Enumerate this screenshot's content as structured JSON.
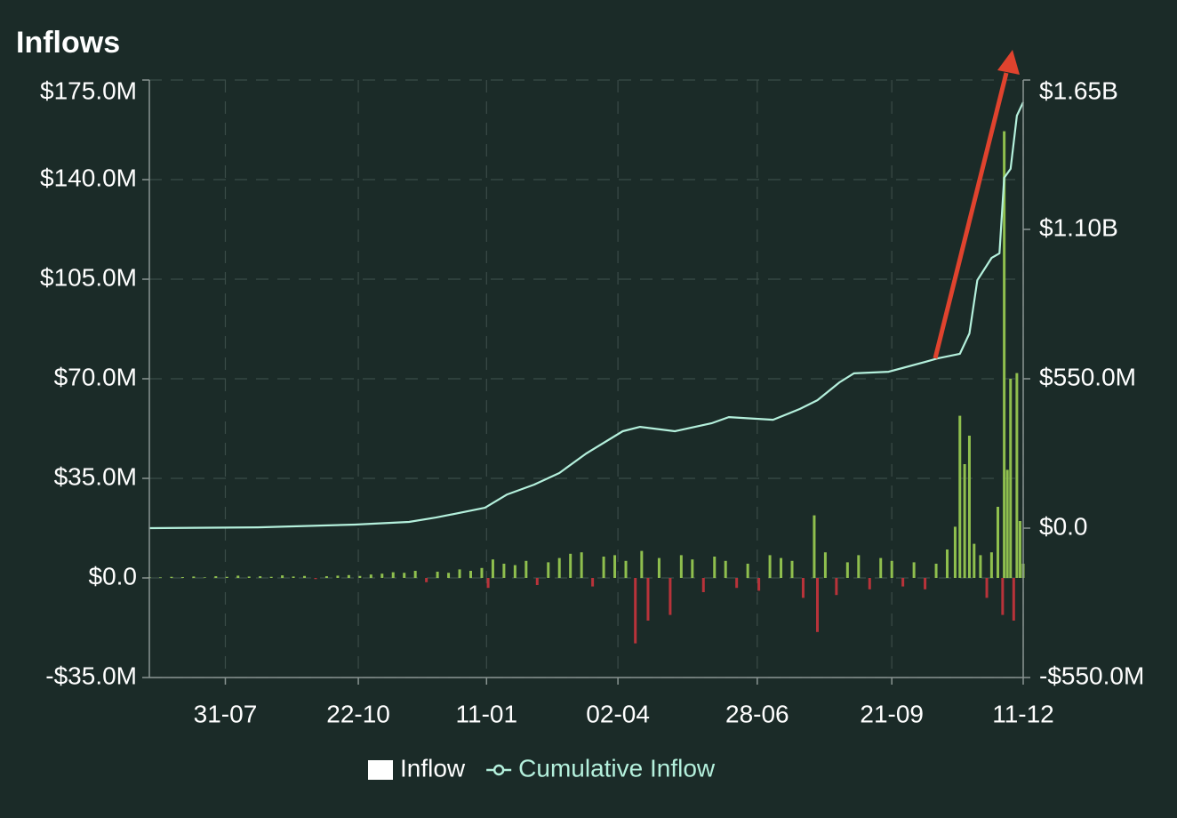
{
  "chart_data": {
    "type": "bar_line",
    "title": "Inflows",
    "xlim": [
      0,
      552
    ],
    "xticks": [
      {
        "value": 48,
        "label": "31-07"
      },
      {
        "value": 132,
        "label": "22-10"
      },
      {
        "value": 213,
        "label": "11-01"
      },
      {
        "value": 296,
        "label": "02-04"
      },
      {
        "value": 384,
        "label": "28-06"
      },
      {
        "value": 469,
        "label": "21-09"
      },
      {
        "value": 552,
        "label": "11-12"
      }
    ],
    "ylim": [
      -35,
      175
    ],
    "yticks": [
      {
        "value": -35,
        "label": "-$35.0M"
      },
      {
        "value": 0,
        "label": "$0.0"
      },
      {
        "value": 35,
        "label": "$35.0M"
      },
      {
        "value": 70,
        "label": "$70.0M"
      },
      {
        "value": 105,
        "label": "$105.0M"
      },
      {
        "value": 140,
        "label": "$140.0M"
      },
      {
        "value": 175,
        "label": "$175.0M"
      }
    ],
    "y2lim": [
      -550,
      1650
    ],
    "y2ticks": [
      {
        "value": -550,
        "label": "-$550.0M"
      },
      {
        "value": 0,
        "label": "$0.0"
      },
      {
        "value": 550,
        "label": "$550.0M"
      },
      {
        "value": 1100,
        "label": "$1.10B"
      },
      {
        "value": 1650,
        "label": "$1.65B"
      }
    ],
    "grid": true,
    "legend": "bottom",
    "series": [
      {
        "name": "Inflow",
        "type": "bar",
        "color": "#8fbf4e",
        "negative_color": "#b8333a",
        "legend_color": "#ffffff",
        "x": [
          0,
          7,
          14,
          21,
          28,
          35,
          42,
          49,
          56,
          63,
          70,
          77,
          84,
          91,
          98,
          105,
          112,
          119,
          126,
          133,
          140,
          147,
          154,
          161,
          168,
          175,
          182,
          189,
          196,
          203,
          210,
          214,
          217,
          224,
          231,
          238,
          245,
          252,
          259,
          266,
          273,
          280,
          287,
          294,
          301,
          307,
          311,
          315,
          322,
          329,
          336,
          343,
          350,
          357,
          364,
          371,
          378,
          385,
          392,
          399,
          406,
          413,
          420,
          422,
          427,
          434,
          441,
          448,
          455,
          462,
          469,
          476,
          483,
          490,
          497,
          504,
          509,
          512,
          515,
          518,
          521,
          525,
          529,
          532,
          536,
          539,
          540,
          542,
          544,
          546,
          548,
          550,
          552
        ],
        "values": [
          0.3,
          0.2,
          0.4,
          0.3,
          0.5,
          0.2,
          0.6,
          0.4,
          0.8,
          0.5,
          0.6,
          0.4,
          0.9,
          0.5,
          0.7,
          -0.4,
          0.6,
          0.8,
          1.0,
          0.7,
          1.2,
          1.5,
          2.0,
          1.8,
          2.5,
          -1.5,
          2.2,
          1.8,
          3.0,
          2.5,
          3.5,
          -3.5,
          6.5,
          5.0,
          4.5,
          6.0,
          -2.5,
          5.5,
          7.0,
          8.5,
          9.0,
          -3.0,
          7.5,
          8.0,
          6.0,
          -23.0,
          9.5,
          -15.0,
          7.0,
          -13.0,
          8.0,
          6.5,
          -5.0,
          7.5,
          6.0,
          -3.5,
          5.0,
          -4.5,
          8.0,
          7.0,
          6.0,
          -7.0,
          22.0,
          -19.0,
          9.0,
          -6.0,
          5.5,
          8.0,
          -4.0,
          7.0,
          6.0,
          -3.0,
          5.5,
          -4.0,
          5.0,
          10.0,
          18.0,
          57.0,
          40.0,
          50.0,
          12.0,
          8.0,
          -7.0,
          9.0,
          25.0,
          -13.0,
          157.0,
          38.0,
          70.0,
          -15.0,
          72.0,
          20.0,
          5.0
        ]
      },
      {
        "name": "Cumulative Inflow",
        "type": "line",
        "axis": "y2",
        "color": "#b4f0dc",
        "x": [
          0,
          68.5,
          130,
          164,
          181,
          212,
          226,
          243,
          259,
          276,
          299,
          310,
          332,
          355,
          366,
          394,
          411,
          422,
          436,
          445,
          467,
          490,
          498,
          512,
          518,
          523,
          532,
          537,
          540,
          544,
          548,
          552
        ],
        "values": [
          0,
          3,
          13,
          23,
          39,
          75,
          124,
          160,
          203,
          275,
          357,
          373,
          357,
          386,
          409,
          399,
          439,
          471,
          537,
          570,
          576,
          612,
          625,
          642,
          717,
          913,
          995,
          1012,
          1290,
          1323,
          1519,
          1568
        ]
      }
    ]
  }
}
